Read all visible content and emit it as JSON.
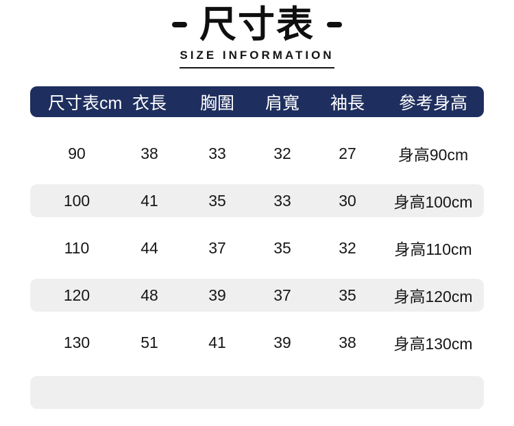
{
  "header": {
    "title": "尺寸表",
    "subtitle": "SIZE INFORMATION"
  },
  "table": {
    "columns": [
      "尺寸表cm",
      "衣長",
      "胸圍",
      "肩寬",
      "袖長",
      "參考身高"
    ],
    "rows": [
      [
        "90",
        "38",
        "33",
        "32",
        "27",
        "身高90cm"
      ],
      [
        "100",
        "41",
        "35",
        "33",
        "30",
        "身高100cm"
      ],
      [
        "110",
        "44",
        "37",
        "35",
        "32",
        "身高110cm"
      ],
      [
        "120",
        "48",
        "39",
        "37",
        "35",
        "身高120cm"
      ],
      [
        "130",
        "51",
        "41",
        "39",
        "38",
        "身高130cm"
      ]
    ]
  },
  "chart_data": {
    "type": "table",
    "title": "尺寸表",
    "subtitle": "SIZE INFORMATION",
    "columns": [
      "尺寸表cm",
      "衣長",
      "胸圍",
      "肩寬",
      "袖長",
      "參考身高"
    ],
    "rows": [
      [
        "90",
        "38",
        "33",
        "32",
        "27",
        "身高90cm"
      ],
      [
        "100",
        "41",
        "35",
        "33",
        "30",
        "身高100cm"
      ],
      [
        "110",
        "44",
        "37",
        "35",
        "32",
        "身高110cm"
      ],
      [
        "120",
        "48",
        "39",
        "37",
        "35",
        "身高120cm"
      ],
      [
        "130",
        "51",
        "41",
        "39",
        "38",
        "身高130cm"
      ]
    ]
  },
  "colors": {
    "header_bg": "#1e2e5e",
    "header_text": "#ffffff",
    "alt_row_bg": "#efefef",
    "text": "#161616"
  }
}
